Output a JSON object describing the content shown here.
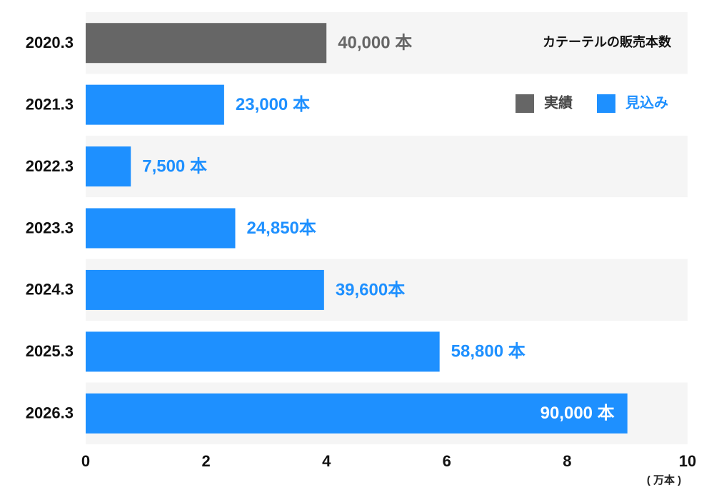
{
  "chart_data": {
    "type": "hbar",
    "title": "カテーテルの販売本数",
    "categories": [
      "2020.3",
      "2021.3",
      "2022.3",
      "2023.3",
      "2024.3",
      "2025.3",
      "2026.3"
    ],
    "values": [
      4,
      2.3,
      0.75,
      2.485,
      3.96,
      5.88,
      9
    ],
    "value_labels": [
      "40,000 本",
      "23,000 本",
      "7,500 本",
      "24,850本",
      "39,600本",
      "58,800 本",
      "90,000 本"
    ],
    "colors": [
      "#666666",
      "#1e90ff",
      "#1e90ff",
      "#1e90ff",
      "#1e90ff",
      "#1e90ff",
      "#1e90ff"
    ],
    "legend": [
      {
        "name": "実績",
        "color": "#666666"
      },
      {
        "name": "見込み",
        "color": "#1e90ff"
      }
    ],
    "xlim": [
      0,
      10
    ],
    "xticks": [
      0,
      2,
      4,
      6,
      8,
      10
    ],
    "x_unit": "( 万本 )"
  }
}
